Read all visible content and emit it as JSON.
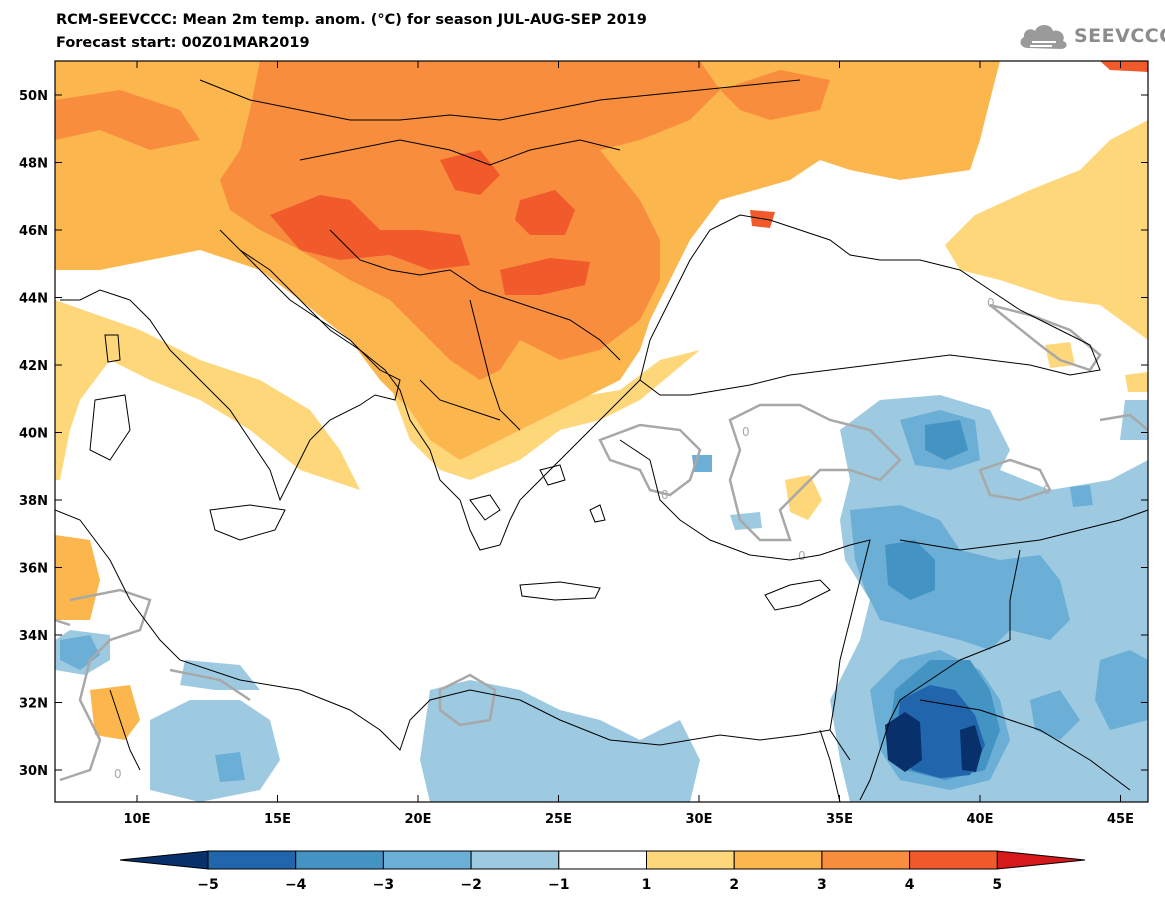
{
  "header": {
    "title_line1": "RCM-SEEVCCC: Mean 2m temp. anom. (°C) for season JUL-AUG-SEP 2019",
    "title_line2": "Forecast start: 00Z01MAR2019",
    "logo_text": "SEEVCCC"
  },
  "map": {
    "lat_labels": [
      "50N",
      "48N",
      "46N",
      "44N",
      "42N",
      "40N",
      "38N",
      "36N",
      "34N",
      "32N",
      "30N"
    ],
    "lon_labels": [
      "10E",
      "15E",
      "20E",
      "25E",
      "30E",
      "35E",
      "40E",
      "45E"
    ],
    "contour_labels": [
      "0"
    ],
    "colors": {
      "anom_m5": "#08306b",
      "anom_m4": "#2166ac",
      "anom_m3": "#4393c3",
      "anom_m2": "#6baed6",
      "anom_m1": "#9ecae1",
      "anom_0": "#ffffff",
      "anom_p1": "#fdd77a",
      "anom_p2": "#fcb64e",
      "anom_p3": "#f98d3e",
      "anom_p4": "#f15a2b",
      "anom_p5": "#d7191c",
      "contour_zero": "#a8a8a8",
      "coastline": "#000000"
    }
  },
  "colorbar": {
    "labels": [
      "−5",
      "−4",
      "−3",
      "−2",
      "−1",
      "1",
      "2",
      "3",
      "4",
      "5"
    ],
    "colors": [
      "#08306b",
      "#2166ac",
      "#4393c3",
      "#6baed6",
      "#9ecae1",
      "#ffffff",
      "#fdd77a",
      "#fcb64e",
      "#f98d3e",
      "#f15a2b",
      "#d7191c",
      "#c81a1a"
    ]
  }
}
